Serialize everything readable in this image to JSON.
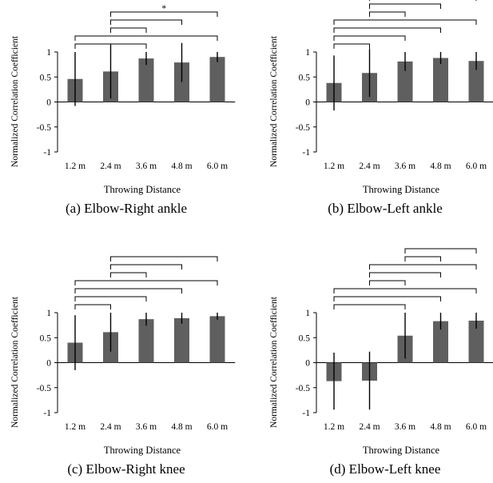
{
  "figure": {
    "background": "#ffffff",
    "bar_color": "#5f5f5f",
    "axis_color": "#000000",
    "bracket_color": "#000000"
  },
  "chart_data": [
    {
      "type": "bar",
      "caption": "(a) Elbow-Right ankle",
      "xlabel": "Throwing Distance",
      "ylabel": "Normalized Correlation Coefficient",
      "categories": [
        "1.2 m",
        "2.4 m",
        "3.6 m",
        "4.8 m",
        "6.0 m"
      ],
      "values": [
        0.46,
        0.61,
        0.87,
        0.79,
        0.9
      ],
      "errors": [
        0.54,
        0.54,
        0.13,
        0.39,
        0.1
      ],
      "ylim": [
        -1,
        1
      ],
      "yticks": [
        "1",
        "0.5",
        "0",
        "-0.5",
        "-1"
      ],
      "significance": [
        {
          "from": 1,
          "to": 4,
          "label": "*"
        },
        {
          "from": 1,
          "to": 3,
          "label": ""
        },
        {
          "from": 1,
          "to": 2,
          "label": ""
        },
        {
          "from": 0,
          "to": 4,
          "label": ""
        },
        {
          "from": 0,
          "to": 2,
          "label": ""
        }
      ]
    },
    {
      "type": "bar",
      "caption": "(b) Elbow-Left ankle",
      "xlabel": "Throwing Distance",
      "ylabel": "Normalized Correlation Coefficient",
      "categories": [
        "1.2 m",
        "2.4 m",
        "3.6 m",
        "4.8 m",
        "6.0 m"
      ],
      "values": [
        0.38,
        0.58,
        0.81,
        0.88,
        0.82
      ],
      "errors": [
        0.55,
        0.48,
        0.19,
        0.12,
        0.18
      ],
      "ylim": [
        -1,
        1
      ],
      "yticks": [
        "1",
        "0.5",
        "0",
        "-0.5",
        "-1"
      ],
      "significance": [
        {
          "from": 1,
          "to": 4,
          "label": ""
        },
        {
          "from": 1,
          "to": 3,
          "label": ""
        },
        {
          "from": 1,
          "to": 2,
          "label": ""
        },
        {
          "from": 0,
          "to": 4,
          "label": ""
        },
        {
          "from": 0,
          "to": 3,
          "label": ""
        },
        {
          "from": 0,
          "to": 2,
          "label": ""
        },
        {
          "from": 0,
          "to": 1,
          "label": ""
        }
      ]
    },
    {
      "type": "bar",
      "caption": "(c) Elbow-Right knee",
      "xlabel": "Throwing Distance",
      "ylabel": "Normalized Correlation Coefficient",
      "categories": [
        "1.2 m",
        "2.4 m",
        "3.6 m",
        "4.8 m",
        "6.0 m"
      ],
      "values": [
        0.4,
        0.61,
        0.87,
        0.89,
        0.93
      ],
      "errors": [
        0.55,
        0.39,
        0.13,
        0.11,
        0.07
      ],
      "ylim": [
        -1,
        1
      ],
      "yticks": [
        "1",
        "0.5",
        "0",
        "-0.5",
        "-1"
      ],
      "significance": [
        {
          "from": 1,
          "to": 4,
          "label": ""
        },
        {
          "from": 1,
          "to": 3,
          "label": ""
        },
        {
          "from": 1,
          "to": 2,
          "label": ""
        },
        {
          "from": 0,
          "to": 4,
          "label": ""
        },
        {
          "from": 0,
          "to": 3,
          "label": ""
        },
        {
          "from": 0,
          "to": 2,
          "label": ""
        },
        {
          "from": 0,
          "to": 1,
          "label": ""
        }
      ]
    },
    {
      "type": "bar",
      "caption": "(d) Elbow-Left knee",
      "xlabel": "Throwing Distance",
      "ylabel": "Normalized Correlation Coefficient",
      "categories": [
        "1.2 m",
        "2.4 m",
        "3.6 m",
        "4.8 m",
        "6.0 m"
      ],
      "values": [
        -0.37,
        -0.36,
        0.54,
        0.83,
        0.84
      ],
      "errors": [
        0.57,
        0.58,
        0.46,
        0.17,
        0.16
      ],
      "ylim": [
        -1,
        1
      ],
      "yticks": [
        "1",
        "0.5",
        "0",
        "-0.5",
        "-1"
      ],
      "significance": [
        {
          "from": 2,
          "to": 4,
          "label": ""
        },
        {
          "from": 2,
          "to": 3,
          "label": ""
        },
        {
          "from": 1,
          "to": 4,
          "label": ""
        },
        {
          "from": 1,
          "to": 3,
          "label": ""
        },
        {
          "from": 1,
          "to": 2,
          "label": ""
        },
        {
          "from": 0,
          "to": 4,
          "label": ""
        },
        {
          "from": 0,
          "to": 3,
          "label": ""
        },
        {
          "from": 0,
          "to": 2,
          "label": ""
        }
      ]
    }
  ]
}
